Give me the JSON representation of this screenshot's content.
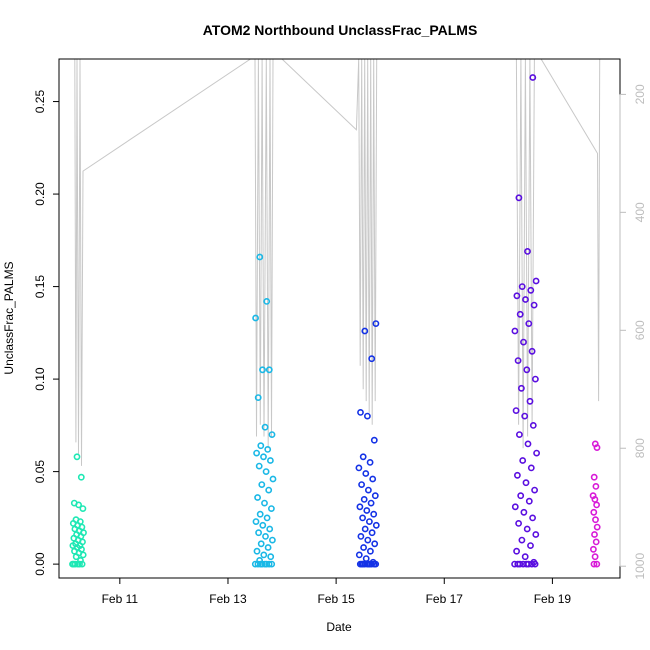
{
  "chart_data": {
    "type": "scatter",
    "title": "ATOM2 Northbound UnclassFrac_PALMS",
    "xlabel": "Date",
    "ylabel": "UnclassFrac_PALMS",
    "xlim": [
      "2017-02-09 21:00",
      "2017-02-20 06:00"
    ],
    "ylim": [
      -0.0075,
      0.273
    ],
    "x_ticks": [
      "Feb 11",
      "Feb 13",
      "Feb 15",
      "Feb 17",
      "Feb 19"
    ],
    "x_tick_dates": [
      "2017-02-11",
      "2017-02-13",
      "2017-02-15",
      "2017-02-17",
      "2017-02-19"
    ],
    "y_ticks": [
      0.0,
      0.05,
      0.1,
      0.15,
      0.2,
      0.25
    ],
    "y_tick_labels": [
      "0.00",
      "0.05",
      "0.10",
      "0.15",
      "0.20",
      "0.25"
    ],
    "right_axis": {
      "ylim": [
        1020,
        140
      ],
      "ticks": [
        200,
        400,
        600,
        800,
        1000
      ],
      "color": "#bdbdbd"
    },
    "grid": false,
    "series": [
      {
        "color": "#1ee8b4",
        "time_range": [
          "2017-02-10 03:00",
          "2017-02-10 08:00"
        ],
        "values": [
          0.0,
          0.0,
          0.0,
          0.0,
          0.0,
          0.0,
          0.002,
          0.004,
          0.005,
          0.006,
          0.007,
          0.008,
          0.009,
          0.01,
          0.01,
          0.011,
          0.012,
          0.013,
          0.014,
          0.015,
          0.016,
          0.017,
          0.018,
          0.019,
          0.02,
          0.021,
          0.022,
          0.023,
          0.024,
          0.03,
          0.032,
          0.033,
          0.047,
          0.058
        ]
      },
      {
        "color": "#1ab8e6",
        "time_range": [
          "2017-02-13 12:00",
          "2017-02-13 20:00"
        ],
        "values": [
          0.0,
          0.0,
          0.0,
          0.0,
          0.0,
          0.0,
          0.0,
          0.0,
          0.002,
          0.004,
          0.005,
          0.007,
          0.009,
          0.011,
          0.013,
          0.015,
          0.017,
          0.019,
          0.021,
          0.023,
          0.025,
          0.027,
          0.03,
          0.033,
          0.036,
          0.04,
          0.043,
          0.046,
          0.05,
          0.053,
          0.056,
          0.058,
          0.06,
          0.062,
          0.064,
          0.07,
          0.074,
          0.09,
          0.105,
          0.105,
          0.133,
          0.142,
          0.166
        ]
      },
      {
        "color": "#1432e6",
        "time_range": [
          "2017-02-15 10:00",
          "2017-02-15 18:00"
        ],
        "values": [
          0.0,
          0.0,
          0.0,
          0.0,
          0.0,
          0.0,
          0.0,
          0.0,
          0.0,
          0.0,
          0.001,
          0.003,
          0.005,
          0.007,
          0.009,
          0.011,
          0.013,
          0.015,
          0.017,
          0.019,
          0.021,
          0.023,
          0.025,
          0.027,
          0.029,
          0.031,
          0.033,
          0.035,
          0.037,
          0.04,
          0.043,
          0.046,
          0.049,
          0.052,
          0.055,
          0.058,
          0.067,
          0.08,
          0.082,
          0.111,
          0.126,
          0.13
        ]
      },
      {
        "color": "#5a0ee0",
        "time_range": [
          "2017-02-18 07:00",
          "2017-02-18 17:00"
        ],
        "values": [
          0.0,
          0.0,
          0.0,
          0.0,
          0.0,
          0.0,
          0.0,
          0.0,
          0.001,
          0.004,
          0.007,
          0.01,
          0.013,
          0.016,
          0.019,
          0.022,
          0.025,
          0.028,
          0.031,
          0.034,
          0.037,
          0.04,
          0.044,
          0.048,
          0.052,
          0.056,
          0.06,
          0.065,
          0.07,
          0.075,
          0.08,
          0.083,
          0.088,
          0.095,
          0.1,
          0.105,
          0.11,
          0.115,
          0.12,
          0.126,
          0.13,
          0.135,
          0.14,
          0.143,
          0.145,
          0.148,
          0.15,
          0.153,
          0.169,
          0.198,
          0.263
        ]
      },
      {
        "color": "#d81ad8",
        "time_range": [
          "2017-02-19 18:00",
          "2017-02-19 20:00"
        ],
        "values": [
          0.0,
          0.0,
          0.004,
          0.008,
          0.012,
          0.016,
          0.02,
          0.024,
          0.028,
          0.032,
          0.035,
          0.037,
          0.042,
          0.047,
          0.063,
          0.065
        ]
      }
    ],
    "background_altitude_trace": {
      "color": "#c8c8c8",
      "points": [
        [
          "2017-02-10 04:00",
          140
        ],
        [
          "2017-02-10 04:30",
          790
        ],
        [
          "2017-02-10 05:00",
          140
        ],
        [
          "2017-02-10 05:40",
          810
        ],
        [
          "2017-02-10 06:20",
          140
        ],
        [
          "2017-02-10 07:00",
          830
        ],
        [
          "2017-02-10 07:40",
          330
        ],
        [
          "2017-02-13 10:00",
          140
        ],
        [
          "2017-02-13 12:00",
          140
        ],
        [
          "2017-02-13 12:40",
          780
        ],
        [
          "2017-02-13 13:30",
          140
        ],
        [
          "2017-02-13 14:20",
          760
        ],
        [
          "2017-02-13 15:10",
          140
        ],
        [
          "2017-02-13 16:00",
          780
        ],
        [
          "2017-02-13 17:00",
          140
        ],
        [
          "2017-02-13 17:50",
          800
        ],
        [
          "2017-02-13 18:40",
          140
        ],
        [
          "2017-02-13 19:20",
          780
        ],
        [
          "2017-02-13 20:00",
          140
        ],
        [
          "2017-02-14 00:00",
          140
        ],
        [
          "2017-02-15 09:00",
          260
        ],
        [
          "2017-02-15 10:00",
          140
        ],
        [
          "2017-02-15 10:40",
          660
        ],
        [
          "2017-02-15 11:20",
          140
        ],
        [
          "2017-02-15 12:00",
          700
        ],
        [
          "2017-02-15 12:40",
          140
        ],
        [
          "2017-02-15 13:20",
          720
        ],
        [
          "2017-02-15 14:00",
          140
        ],
        [
          "2017-02-15 14:40",
          740
        ],
        [
          "2017-02-15 15:20",
          140
        ],
        [
          "2017-02-15 16:00",
          760
        ],
        [
          "2017-02-15 16:40",
          140
        ],
        [
          "2017-02-15 17:20",
          720
        ],
        [
          "2017-02-15 18:00",
          140
        ],
        [
          "2017-02-18 08:00",
          140
        ],
        [
          "2017-02-18 09:00",
          760
        ],
        [
          "2017-02-18 10:00",
          140
        ],
        [
          "2017-02-18 11:00",
          800
        ],
        [
          "2017-02-18 12:00",
          140
        ],
        [
          "2017-02-18 13:00",
          780
        ],
        [
          "2017-02-18 14:00",
          140
        ],
        [
          "2017-02-18 15:00",
          760
        ],
        [
          "2017-02-18 16:00",
          140
        ],
        [
          "2017-02-18 17:00",
          140
        ],
        [
          "2017-02-18 19:00",
          140
        ],
        [
          "2017-02-19 20:00",
          300
        ],
        [
          "2017-02-19 20:30",
          720
        ],
        [
          "2017-02-19 21:00",
          140
        ]
      ]
    }
  }
}
